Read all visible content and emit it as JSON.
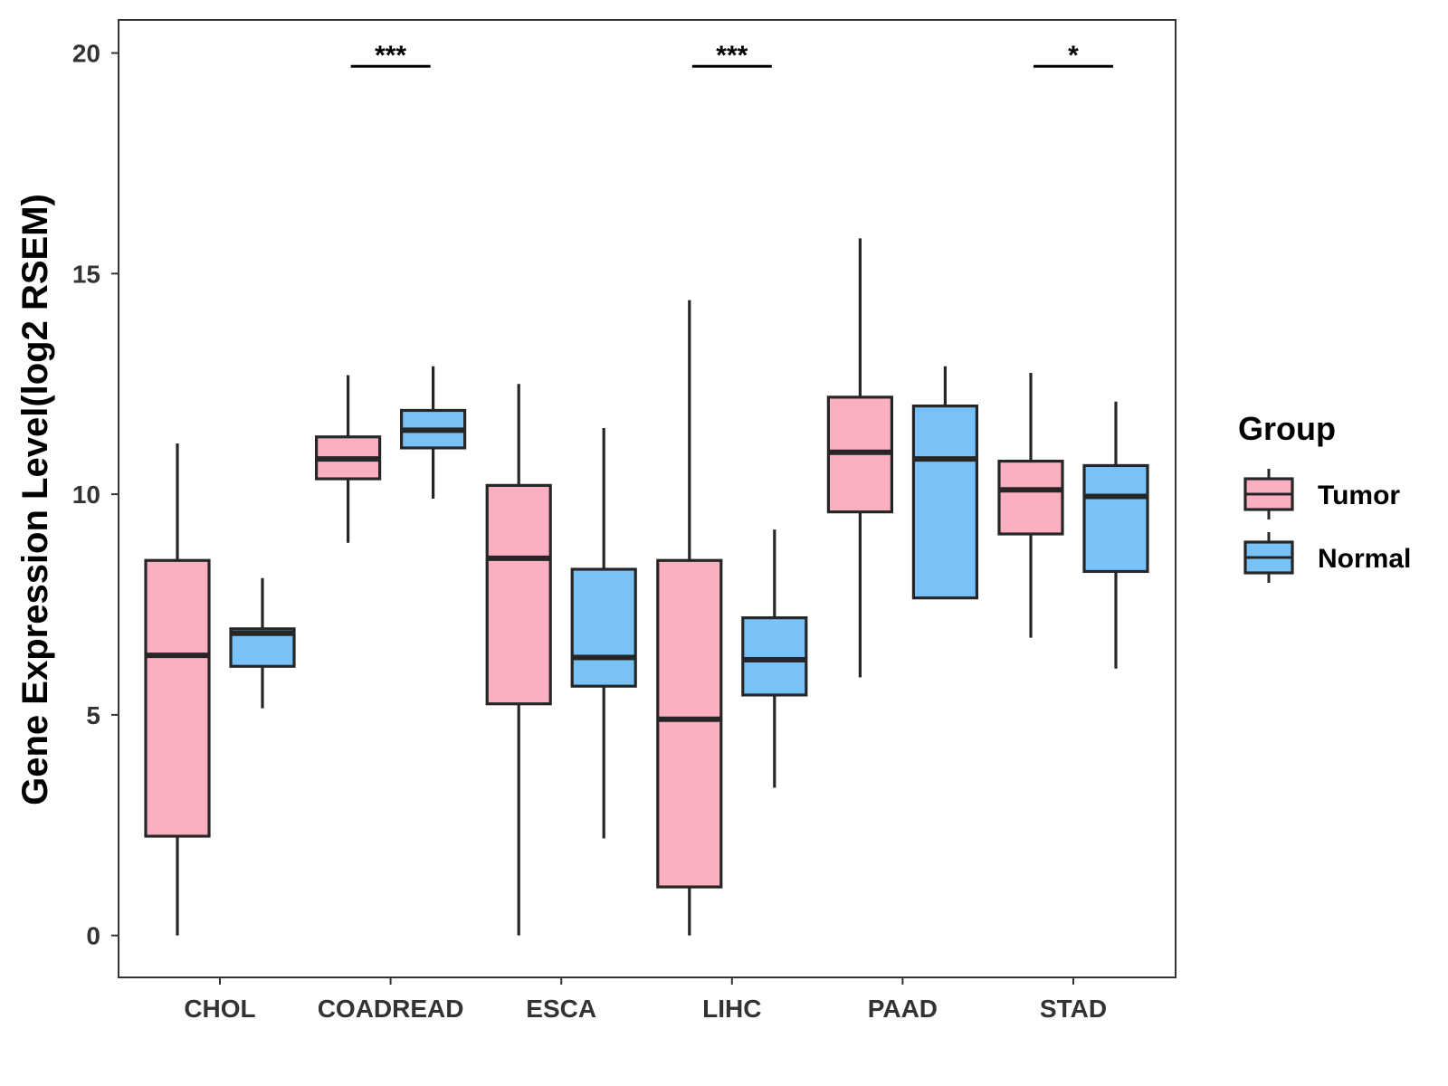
{
  "chart_data": {
    "type": "boxplot",
    "title": "",
    "xlabel": "",
    "ylabel": "Gene Expression Level(log2 RSEM)",
    "ylim": [
      -0.95,
      20.75
    ],
    "yticks": [
      0,
      5,
      10,
      15,
      20
    ],
    "grid": false,
    "legend": {
      "title": "Group",
      "position": "right"
    },
    "categories": [
      "CHOL",
      "COADREAD",
      "ESCA",
      "LIHC",
      "PAAD",
      "STAD"
    ],
    "series": [
      {
        "name": "Tumor",
        "color": "#FBB0C2",
        "boxes": [
          {
            "min": 0.0,
            "q1": 2.25,
            "median": 6.35,
            "q3": 8.5,
            "max": 11.15
          },
          {
            "min": 8.9,
            "q1": 10.35,
            "median": 10.8,
            "q3": 11.3,
            "max": 12.7
          },
          {
            "min": 0.0,
            "q1": 5.25,
            "median": 8.55,
            "q3": 10.2,
            "max": 12.5
          },
          {
            "min": 0.0,
            "q1": 1.1,
            "median": 4.9,
            "q3": 8.5,
            "max": 14.4
          },
          {
            "min": 5.85,
            "q1": 9.6,
            "median": 10.95,
            "q3": 12.2,
            "max": 15.8
          },
          {
            "min": 6.75,
            "q1": 9.1,
            "median": 10.1,
            "q3": 10.75,
            "max": 12.75
          }
        ]
      },
      {
        "name": "Normal",
        "color": "#78C2F8",
        "boxes": [
          {
            "min": 5.15,
            "q1": 6.1,
            "median": 6.85,
            "q3": 6.95,
            "max": 8.1
          },
          {
            "min": 9.9,
            "q1": 11.05,
            "median": 11.45,
            "q3": 11.9,
            "max": 12.9
          },
          {
            "min": 2.2,
            "q1": 5.65,
            "median": 6.3,
            "q3": 8.3,
            "max": 11.5
          },
          {
            "min": 3.35,
            "q1": 5.45,
            "median": 6.25,
            "q3": 7.2,
            "max": 9.2
          },
          {
            "min": 7.65,
            "q1": 7.65,
            "median": 10.8,
            "q3": 12.0,
            "max": 12.9
          },
          {
            "min": 6.05,
            "q1": 8.25,
            "median": 9.95,
            "q3": 10.65,
            "max": 12.1
          }
        ]
      }
    ],
    "significance": [
      {
        "category": "COADREAD",
        "label": "***",
        "y": 19.7
      },
      {
        "category": "LIHC",
        "label": "***",
        "y": 19.7
      },
      {
        "category": "STAD",
        "label": "*",
        "y": 19.7
      }
    ]
  },
  "colors": {
    "tumor_fill": "#FBB0C2",
    "normal_fill": "#78C2F8",
    "stroke": "#262626",
    "axis": "#333333"
  }
}
